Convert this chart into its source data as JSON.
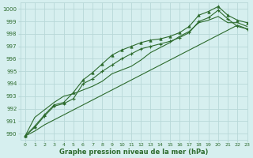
{
  "xlabel": "Graphe pression niveau de la mer (hPa)",
  "xlim": [
    -0.5,
    23
  ],
  "ylim": [
    989.5,
    1000.5
  ],
  "yticks": [
    990,
    991,
    992,
    993,
    994,
    995,
    996,
    997,
    998,
    999,
    1000
  ],
  "xticks": [
    0,
    1,
    2,
    3,
    4,
    5,
    6,
    7,
    8,
    9,
    10,
    11,
    12,
    13,
    14,
    15,
    16,
    17,
    18,
    19,
    20,
    21,
    22,
    23
  ],
  "background_color": "#d6efef",
  "grid_color": "#b8d8d8",
  "line_color": "#2d6b2d",
  "series_markers": [
    989.8,
    990.5,
    991.4,
    992.2,
    992.4,
    992.8,
    994.0,
    994.4,
    995.0,
    995.5,
    996.0,
    996.4,
    996.8,
    997.0,
    997.2,
    997.4,
    997.7,
    998.1,
    999.0,
    999.3,
    999.9,
    999.2,
    998.6,
    998.4
  ],
  "series_triangle": [
    989.8,
    990.6,
    991.5,
    992.3,
    992.5,
    993.3,
    994.3,
    994.9,
    995.6,
    996.3,
    996.7,
    997.0,
    997.3,
    997.5,
    997.6,
    997.8,
    998.1,
    998.6,
    999.5,
    999.8,
    1000.2,
    999.5,
    999.1,
    998.9
  ],
  "series_linear": [
    989.8,
    990.2,
    990.7,
    991.1,
    991.5,
    991.9,
    992.3,
    992.7,
    993.1,
    993.5,
    993.9,
    994.3,
    994.7,
    995.1,
    995.5,
    995.9,
    996.3,
    996.7,
    997.1,
    997.5,
    997.9,
    998.3,
    998.7,
    998.4
  ],
  "series_plain": [
    989.8,
    991.3,
    991.9,
    992.5,
    993.0,
    993.2,
    993.5,
    993.8,
    994.2,
    994.8,
    995.1,
    995.4,
    995.9,
    996.5,
    996.9,
    997.3,
    997.8,
    998.2,
    998.9,
    999.1,
    999.4,
    998.9,
    998.9,
    998.6
  ]
}
